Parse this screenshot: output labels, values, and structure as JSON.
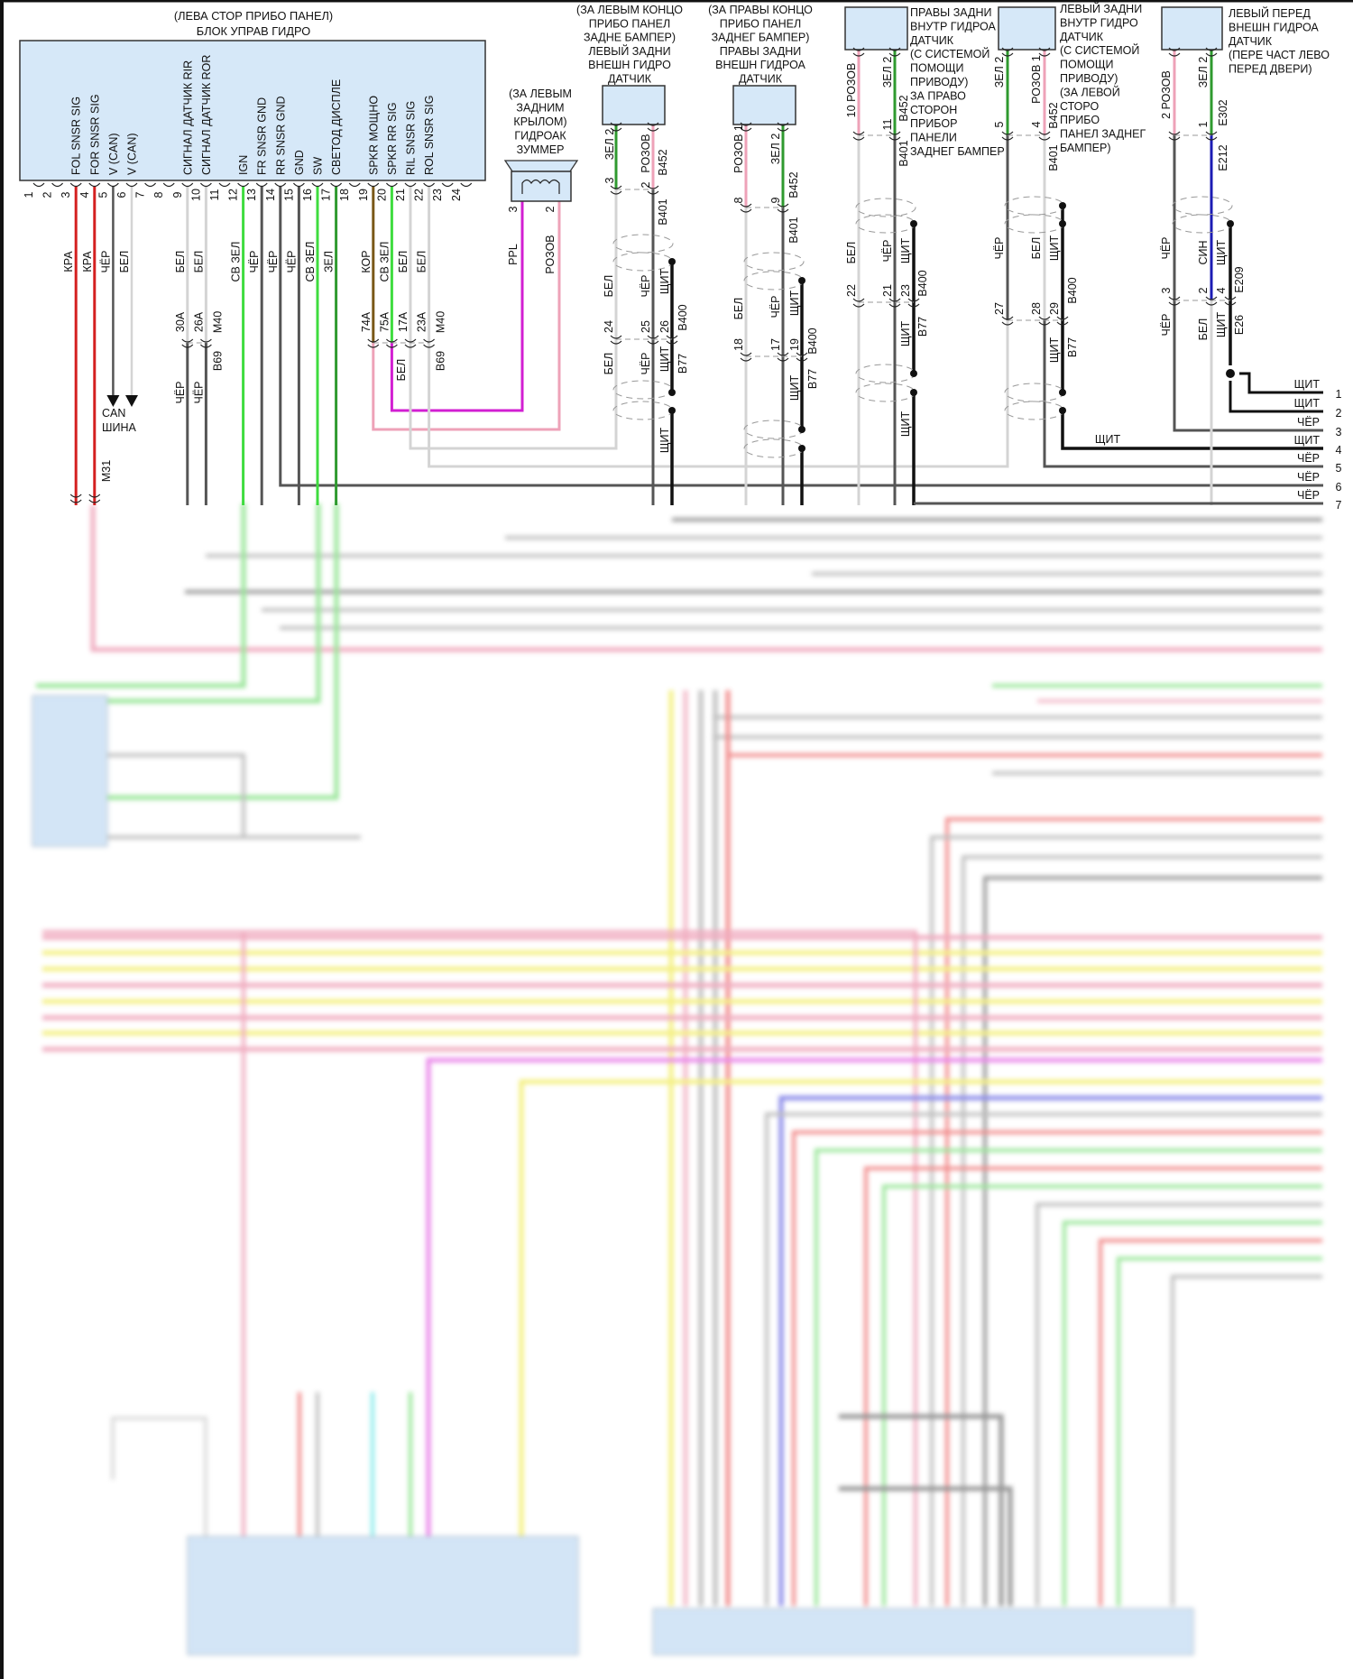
{
  "main_unit": {
    "location": "(ЛЕВА СТОР ПРИБО ПАНЕЛ)",
    "name": "БЛОК УПРАВ ГИДРО",
    "pins": [
      {
        "num": "1"
      },
      {
        "num": "2"
      },
      {
        "num": "3",
        "label": "FOL SNSR SIG",
        "wire": "КРА",
        "color": "red"
      },
      {
        "num": "4",
        "label": "FOR SNSR SIG",
        "wire": "КРА",
        "color": "red"
      },
      {
        "num": "5",
        "label": "V (CAN)",
        "wire": "ЧЁР",
        "color": "black"
      },
      {
        "num": "6",
        "label": "V (CAN)",
        "wire": "БЕЛ",
        "color": "white"
      },
      {
        "num": "7"
      },
      {
        "num": "8"
      },
      {
        "num": "9",
        "label": "СИГНАЛ ДАТЧИК RIR",
        "wire": "БЕЛ",
        "color": "white"
      },
      {
        "num": "10",
        "label": "СИГНАЛ ДАТЧИК ROR",
        "wire": "БЕЛ",
        "color": "white"
      },
      {
        "num": "11"
      },
      {
        "num": "12",
        "label": "IGN",
        "wire": "СВ ЗЕЛ",
        "color": "light_green"
      },
      {
        "num": "13",
        "label": "FR SNSR GND",
        "wire": "ЧЁР",
        "color": "black"
      },
      {
        "num": "14",
        "label": "RR SNSR GND",
        "wire": "ЧЁР",
        "color": "black"
      },
      {
        "num": "15",
        "label": "GND",
        "wire": "ЧЁР",
        "color": "black"
      },
      {
        "num": "16",
        "label": "SW",
        "wire": "СВ ЗЕЛ",
        "color": "light_green"
      },
      {
        "num": "17",
        "label": "СВЕТОД ДИСПЛЕ",
        "wire": "ЗЕЛ",
        "color": "green"
      },
      {
        "num": "18"
      },
      {
        "num": "19",
        "label": "SPKR МОЩНО",
        "wire": "КОР",
        "color": "brown"
      },
      {
        "num": "20",
        "label": "SPKR RR SIG",
        "wire": "СВ ЗЕЛ",
        "color": "light_green"
      },
      {
        "num": "21",
        "label": "RIL SNSR SIG",
        "wire": "БЕЛ",
        "color": "white"
      },
      {
        "num": "22",
        "label": "ROL SNSR SIG",
        "wire": "БЕЛ",
        "color": "white"
      },
      {
        "num": "23"
      },
      {
        "num": "24"
      }
    ]
  },
  "harness": {
    "c30a": "30A",
    "c26a": "26A",
    "m40_a": "M40",
    "b69_a": "B69",
    "cher_a": "ЧЁР",
    "cher_b": "ЧЁР",
    "c74a": "74A",
    "c75a": "75A",
    "c17a": "17A",
    "c23a": "23A",
    "m40_b": "M40",
    "b69_b": "B69",
    "bel_mag": "БЕЛ",
    "m31": "M31"
  },
  "can_bus": {
    "line1": "CAN",
    "line2": "ШИНА"
  },
  "buzzer": {
    "title": [
      "(ЗА ЛЕВЫМ",
      "ЗАДНИМ",
      "КРЫЛОМ)",
      "ГИДРОАК",
      "ЗУММЕР"
    ],
    "pin_a": "3",
    "pin_b": "2",
    "wire_a": "PPL",
    "wire_b": "РОЗОВ"
  },
  "left_rear_outer": {
    "title": [
      "(ЗА ЛЕВЫМ КОНЦО",
      "ПРИБО ПАНЕЛ",
      "ЗАДНЕ БАМПЕР)",
      "ЛЕВЫЙ ЗАДНИ",
      "ВНЕШН ГИДРО",
      "ДАТЧИК"
    ],
    "w1": "ЗЕЛ 2",
    "w2": "РОЗОВ",
    "p3": "3",
    "p2": "2",
    "b452": "B452",
    "b401": "B401",
    "u1": "БЕЛ",
    "u2": "ЧЁР",
    "u3": "ЩИТ",
    "c1": "24",
    "c2": "25",
    "c3": "26",
    "b400": "B400",
    "d1": "БЕЛ",
    "d2": "ЧЁР",
    "d3": "ЩИТ",
    "b77": "B77",
    "s": "ЩИТ"
  },
  "right_rear_outer": {
    "title": [
      "(ЗА ПРАВЫ КОНЦО",
      "ПРИБО ПАНЕЛ",
      "ЗАДНЕГ БАМПЕР)",
      "ПРАВЫ ЗАДНИ",
      "ВНЕШН ГИДРОА",
      "ДАТЧИК"
    ],
    "w1": "РОЗОВ 1",
    "w2": "ЗЕЛ 2",
    "p8": "8",
    "p9": "9",
    "b452": "B452",
    "b401": "B401",
    "u1": "БЕЛ",
    "u2": "ЧЁР",
    "u3": "ЩИТ",
    "c1": "18",
    "c2": "17",
    "c3": "19",
    "b400": "B400",
    "d3": "ЩИТ",
    "b77": "B77"
  },
  "right_rear_inner": {
    "title": [
      "ПРАВЫ ЗАДНИ",
      "ВНУТР ГИДРОА",
      "ДАТЧИК",
      "(С СИСТЕМОЙ",
      "ПОМОЩИ",
      "ПРИВОДУ)",
      "ЗА ПРАВО",
      "СТОРОН",
      "ПРИБОР",
      "ПАНЕЛИ",
      "ЗАДНЕГ БАМПЕР"
    ],
    "w1": "10 РОЗОВ",
    "w2": "ЗЕЛ 2",
    "p11": "11",
    "b452": "B452",
    "b401": "B401",
    "u1": "БЕЛ",
    "u2": "ЧЁР",
    "u3": "ЩИТ",
    "c1": "22",
    "c2": "21",
    "c3": "23",
    "b400": "B400",
    "d3": "ЩИТ",
    "b77": "B77",
    "s": "ЩИТ"
  },
  "left_rear_inner": {
    "title": [
      "ЛЕВЫЙ ЗАДНИ",
      "ВНУТР ГИДРО",
      "ДАТЧИК",
      "(С СИСТЕМОЙ",
      "ПОМОЩИ",
      "ПРИВОДУ)",
      "(ЗА ЛЕВОЙ",
      "СТОРО",
      "ПРИБО",
      "ПАНЕЛ ЗАДНЕГ",
      "БАМПЕР)"
    ],
    "w1": "ЗЕЛ 2",
    "w2": "РОЗОВ 1",
    "p5": "5",
    "p4": "4",
    "b452": "B452",
    "b401": "B401",
    "u1": "ЧЁР",
    "u2": "БЕЛ",
    "u3": "ЩИТ",
    "c1": "27",
    "c2": "28",
    "c3": "29",
    "b400": "B400",
    "d3": "ЩИТ",
    "b77": "B77",
    "s": "ЩИТ"
  },
  "left_front_outer": {
    "title": [
      "ЛЕВЫЙ ПЕРЕД",
      "ВНЕШН ГИДРОА",
      "ДАТЧИК",
      "(ПЕРЕ ЧАСТ ЛЕВО",
      "ПЕРЕД ДВЕРИ)"
    ],
    "w1": "2 РОЗОВ",
    "w2": "ЗЕЛ 2",
    "p1": "1",
    "e302": "E302",
    "e212": "E212",
    "u1": "ЧЁР",
    "u2": "СИН",
    "u3": "ЩИТ",
    "c1": "3",
    "c2": "2",
    "c3": "4",
    "e209": "E209",
    "d1": "ЧЁР",
    "d2": "БЕЛ",
    "d3": "ЩИТ",
    "e26": "E26"
  },
  "right_edge_rows": [
    {
      "num": "1",
      "wire": "ЩИТ"
    },
    {
      "num": "2",
      "wire": "ЩИТ"
    },
    {
      "num": "3",
      "wire": "ЧЁР"
    },
    {
      "num": "4",
      "wire": "ЩИТ"
    },
    {
      "num": "5",
      "wire": "ЧЁР"
    },
    {
      "num": "6",
      "wire": "ЧЁР"
    },
    {
      "num": "7",
      "wire": "ЧЁР"
    }
  ],
  "wire_colors": {
    "red": "#d42020",
    "pink": "#eea2b8",
    "white": "#d4d4d4",
    "black": "#555555",
    "shield": "#111111",
    "light_green": "#3fdc3f",
    "green": "#2f9a2f",
    "brown": "#7a5818",
    "magenta": "#d21fd2",
    "blue": "#1c1cb4",
    "yellow": "#f3ee74",
    "box_fill": "#d6e8f8"
  }
}
